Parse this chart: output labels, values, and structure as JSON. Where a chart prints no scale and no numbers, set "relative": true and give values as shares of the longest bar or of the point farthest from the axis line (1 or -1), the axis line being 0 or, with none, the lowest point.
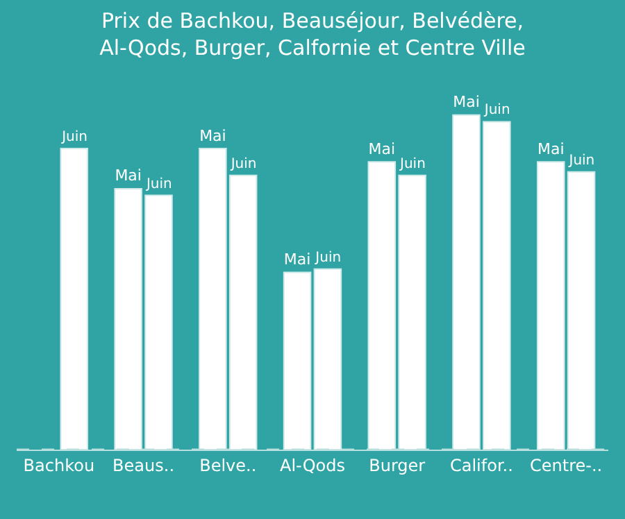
{
  "chart_data": {
    "type": "bar",
    "title": "Prix de Bachkou, Beauséjour, Belvédère,\nAl-Qods, Burger, Calfornie et Centre Ville",
    "categories": [
      "Bachkou",
      "Beaus..",
      "Belve..",
      "Al-Qods",
      "Burger",
      "Califor..",
      "Centre-.."
    ],
    "relative": true,
    "legend": false,
    "grid": false,
    "series": [
      {
        "name": "Mai",
        "color": "#ffffff",
        "values": [
          null,
          0.78,
          0.9,
          0.53,
          0.86,
          1,
          0.86
        ]
      },
      {
        "name": "Juin",
        "color": "#ffffff",
        "values": [
          0.9,
          0.76,
          0.82,
          0.54,
          0.82,
          0.98,
          0.83
        ]
      }
    ]
  }
}
